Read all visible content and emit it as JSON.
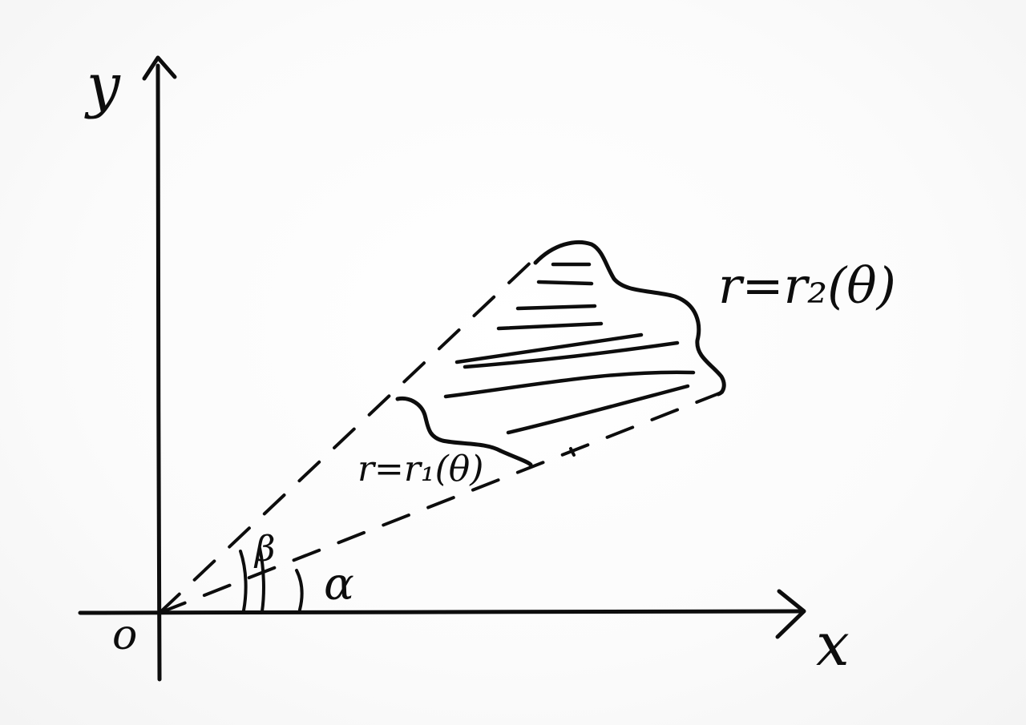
{
  "diagram": {
    "y_axis_label": "y",
    "x_axis_label": "x",
    "origin_label": "o",
    "angle_beta_label": "β",
    "angle_alpha_label": "α",
    "outer_curve_label": "r=r₂(θ)",
    "inner_curve_label": "r=r₁(θ)"
  }
}
